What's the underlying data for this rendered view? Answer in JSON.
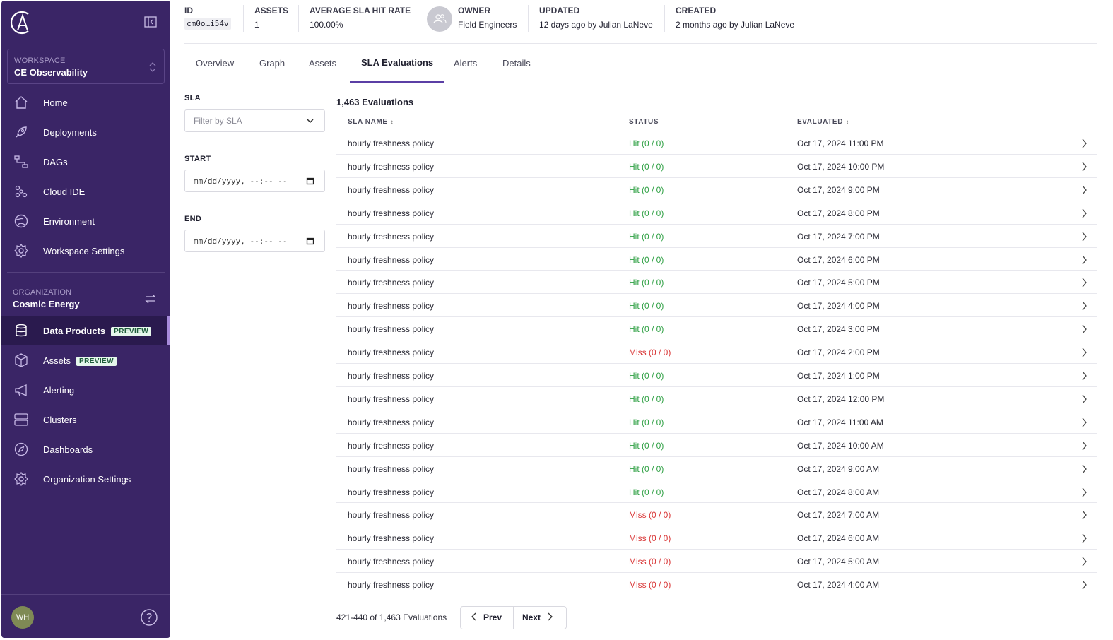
{
  "sidebar": {
    "workspace_kicker": "WORKSPACE",
    "workspace_name": "CE Observability",
    "nav": [
      {
        "label": "Home",
        "icon": "home-icon"
      },
      {
        "label": "Deployments",
        "icon": "rocket-icon"
      },
      {
        "label": "DAGs",
        "icon": "dag-icon"
      },
      {
        "label": "Cloud IDE",
        "icon": "cubes-icon"
      },
      {
        "label": "Environment",
        "icon": "globe-icon"
      },
      {
        "label": "Workspace Settings",
        "icon": "gear-icon"
      }
    ],
    "org_kicker": "ORGANIZATION",
    "org_name": "Cosmic Energy",
    "org_nav": [
      {
        "label": "Data Products",
        "badge": "PREVIEW",
        "icon": "database-icon"
      },
      {
        "label": "Assets",
        "badge": "PREVIEW",
        "icon": "box-icon"
      },
      {
        "label": "Alerting",
        "icon": "megaphone-icon"
      },
      {
        "label": "Clusters",
        "icon": "server-icon"
      },
      {
        "label": "Dashboards",
        "icon": "compass-icon"
      },
      {
        "label": "Organization Settings",
        "icon": "gear-icon"
      }
    ],
    "avatar_initials": "WH"
  },
  "header": {
    "id_label": "ID",
    "id_value": "cm0o…i54v",
    "assets_label": "ASSETS",
    "assets_value": "1",
    "sla_label": "AVERAGE SLA HIT RATE",
    "sla_value": "100.00%",
    "owner_label": "OWNER",
    "owner_value": "Field Engineers",
    "updated_label": "UPDATED",
    "updated_value": "12 days ago by Julian LaNeve",
    "created_label": "CREATED",
    "created_value": "2 months ago by Julian LaNeve"
  },
  "tabs": [
    "Overview",
    "Graph",
    "Assets",
    "SLA Evaluations",
    "Alerts",
    "Details"
  ],
  "active_tab": "SLA Evaluations",
  "filters": {
    "sla_label": "SLA",
    "sla_placeholder": "Filter by SLA",
    "start_label": "START",
    "start_placeholder": "mm/dd/yyyy, --:-- --",
    "end_label": "END",
    "end_placeholder": "mm/dd/yyyy, --:-- --"
  },
  "table": {
    "title": "1,463 Evaluations",
    "columns": [
      "SLA NAME",
      "STATUS",
      "EVALUATED"
    ],
    "rows": [
      {
        "name": "hourly freshness policy",
        "status": "Hit (0 / 0)",
        "kind": "hit",
        "evaluated": "Oct 17, 2024 11:00 PM"
      },
      {
        "name": "hourly freshness policy",
        "status": "Hit (0 / 0)",
        "kind": "hit",
        "evaluated": "Oct 17, 2024 10:00 PM"
      },
      {
        "name": "hourly freshness policy",
        "status": "Hit (0 / 0)",
        "kind": "hit",
        "evaluated": "Oct 17, 2024 9:00 PM"
      },
      {
        "name": "hourly freshness policy",
        "status": "Hit (0 / 0)",
        "kind": "hit",
        "evaluated": "Oct 17, 2024 8:00 PM"
      },
      {
        "name": "hourly freshness policy",
        "status": "Hit (0 / 0)",
        "kind": "hit",
        "evaluated": "Oct 17, 2024 7:00 PM"
      },
      {
        "name": "hourly freshness policy",
        "status": "Hit (0 / 0)",
        "kind": "hit",
        "evaluated": "Oct 17, 2024 6:00 PM"
      },
      {
        "name": "hourly freshness policy",
        "status": "Hit (0 / 0)",
        "kind": "hit",
        "evaluated": "Oct 17, 2024 5:00 PM"
      },
      {
        "name": "hourly freshness policy",
        "status": "Hit (0 / 0)",
        "kind": "hit",
        "evaluated": "Oct 17, 2024 4:00 PM"
      },
      {
        "name": "hourly freshness policy",
        "status": "Hit (0 / 0)",
        "kind": "hit",
        "evaluated": "Oct 17, 2024 3:00 PM"
      },
      {
        "name": "hourly freshness policy",
        "status": "Miss (0 / 0)",
        "kind": "miss",
        "evaluated": "Oct 17, 2024 2:00 PM"
      },
      {
        "name": "hourly freshness policy",
        "status": "Hit (0 / 0)",
        "kind": "hit",
        "evaluated": "Oct 17, 2024 1:00 PM"
      },
      {
        "name": "hourly freshness policy",
        "status": "Hit (0 / 0)",
        "kind": "hit",
        "evaluated": "Oct 17, 2024 12:00 PM"
      },
      {
        "name": "hourly freshness policy",
        "status": "Hit (0 / 0)",
        "kind": "hit",
        "evaluated": "Oct 17, 2024 11:00 AM"
      },
      {
        "name": "hourly freshness policy",
        "status": "Hit (0 / 0)",
        "kind": "hit",
        "evaluated": "Oct 17, 2024 10:00 AM"
      },
      {
        "name": "hourly freshness policy",
        "status": "Hit (0 / 0)",
        "kind": "hit",
        "evaluated": "Oct 17, 2024 9:00 AM"
      },
      {
        "name": "hourly freshness policy",
        "status": "Hit (0 / 0)",
        "kind": "hit",
        "evaluated": "Oct 17, 2024 8:00 AM"
      },
      {
        "name": "hourly freshness policy",
        "status": "Miss (0 / 0)",
        "kind": "miss",
        "evaluated": "Oct 17, 2024 7:00 AM"
      },
      {
        "name": "hourly freshness policy",
        "status": "Miss (0 / 0)",
        "kind": "miss",
        "evaluated": "Oct 17, 2024 6:00 AM"
      },
      {
        "name": "hourly freshness policy",
        "status": "Miss (0 / 0)",
        "kind": "miss",
        "evaluated": "Oct 17, 2024 5:00 AM"
      },
      {
        "name": "hourly freshness policy",
        "status": "Miss (0 / 0)",
        "kind": "miss",
        "evaluated": "Oct 17, 2024 4:00 AM"
      }
    ]
  },
  "pagination": {
    "summary": "421-440 of 1,463 Evaluations",
    "prev": "Prev",
    "next": "Next"
  },
  "colors": {
    "sidebar": "#3a2566",
    "active_tab": "#5b3fa5",
    "hit": "#2ea043",
    "miss": "#d93636",
    "link": "#2a7de1"
  }
}
